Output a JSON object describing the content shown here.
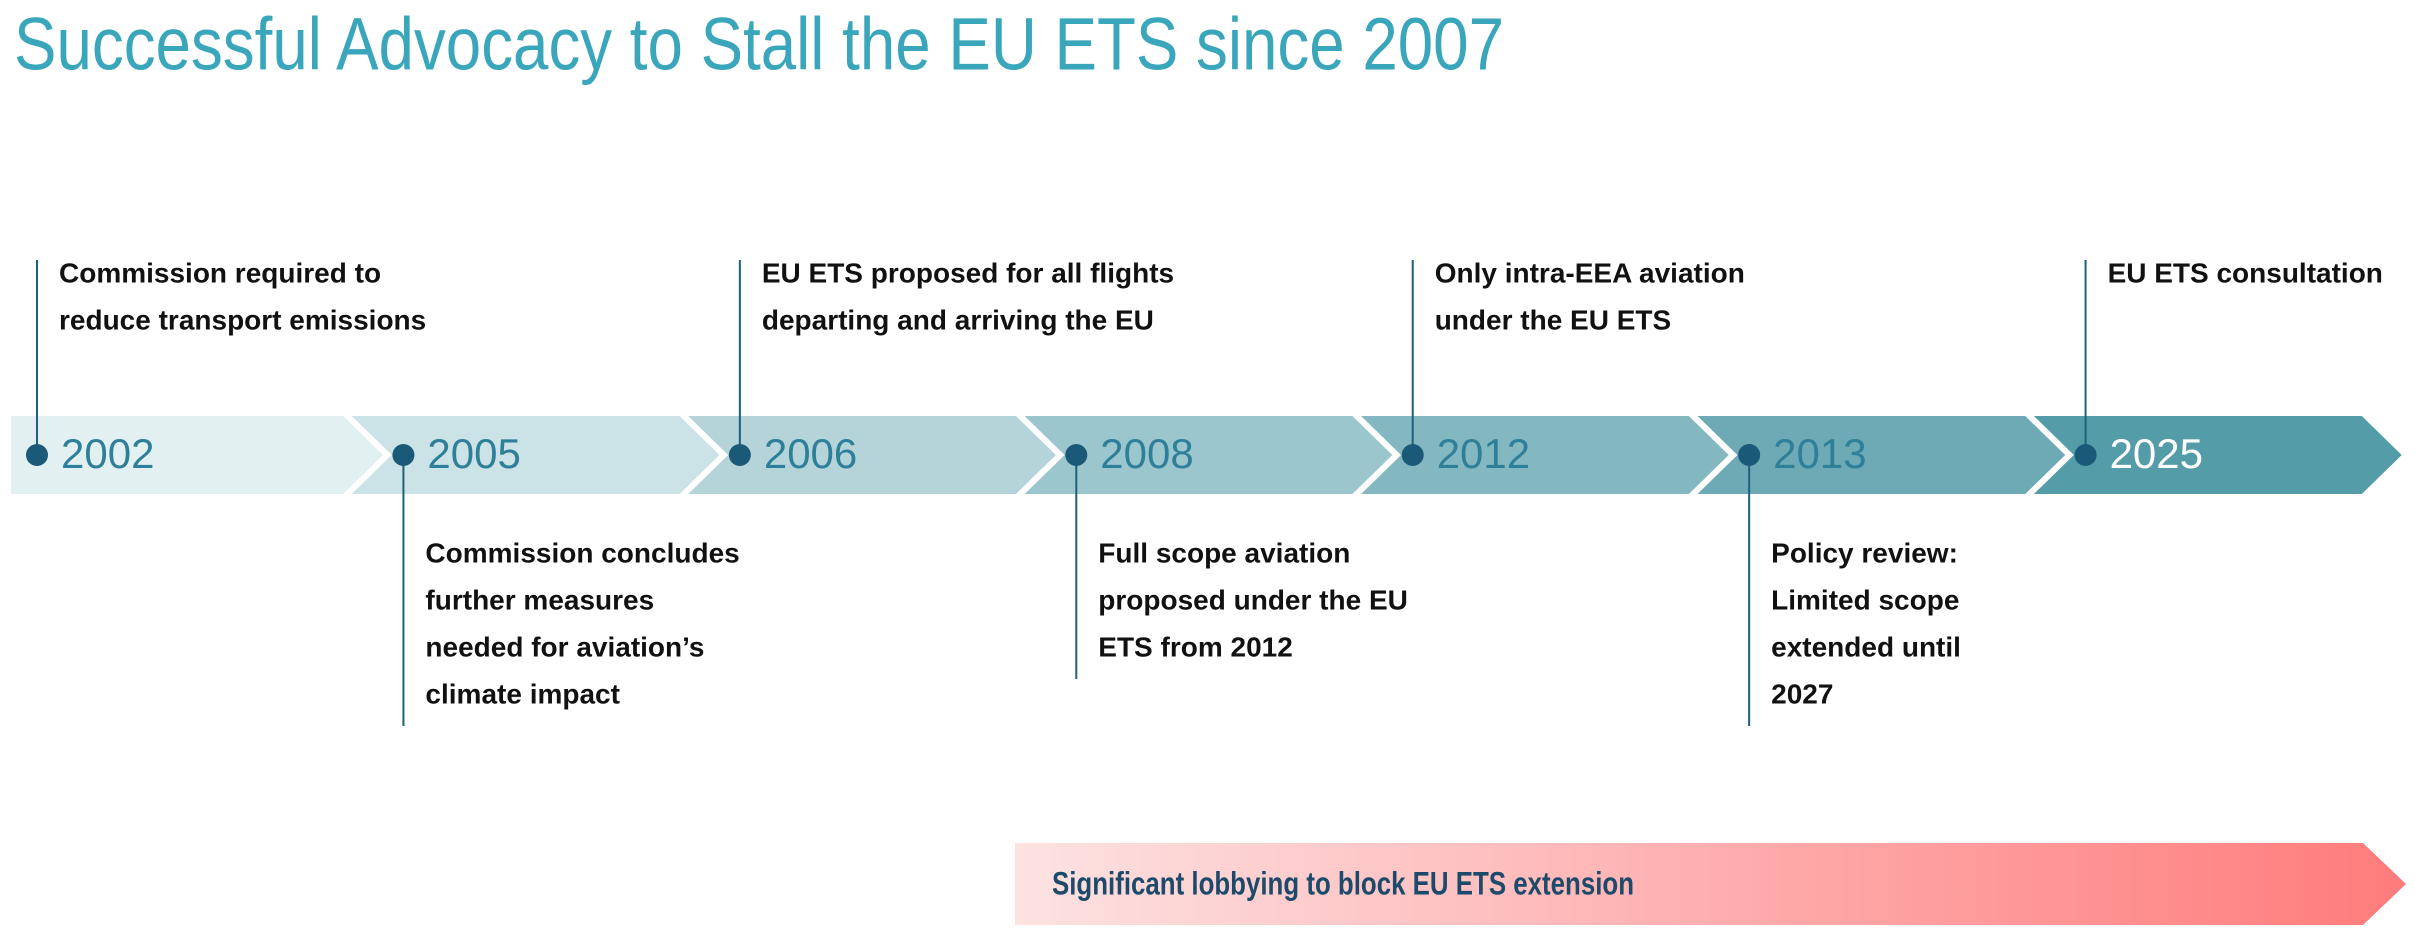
{
  "title": "Successful Advocacy to Stall the EU ETS since 2007",
  "events": [
    {
      "year": "2002",
      "text": [
        "Commission required to",
        "reduce transport emissions"
      ]
    },
    {
      "year": "2005",
      "text": [
        "Commission concludes",
        "further measures",
        "needed for aviation’s",
        "climate impact"
      ]
    },
    {
      "year": "2006",
      "text": [
        "EU ETS proposed for all flights",
        "departing and arriving the EU"
      ]
    },
    {
      "year": "2008",
      "text": [
        "Full scope aviation",
        "proposed under the EU",
        "ETS from 2012"
      ]
    },
    {
      "year": "2012",
      "text": [
        "Only intra-EEA aviation",
        "under the EU ETS"
      ]
    },
    {
      "year": "2013",
      "text": [
        "Policy review:",
        "Limited scope",
        "extended until",
        "2027"
      ]
    },
    {
      "year": "2025",
      "text": [
        "EU ETS consultation"
      ]
    }
  ],
  "lobbying": "Significant lobbying to block EU ETS extension"
}
